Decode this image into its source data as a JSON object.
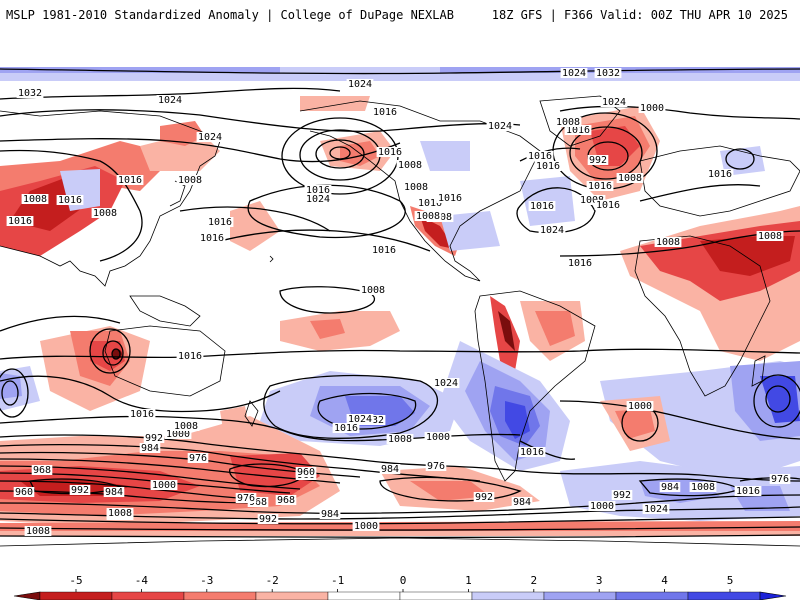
{
  "header": {
    "left": "MSLP 1981-2010 Standardized Anomaly | College of DuPage NEXLAB",
    "right": "18Z GFS | F366 Valid: 00Z THU APR 10 2025"
  },
  "colors": {
    "neg5": "#7a0d0d",
    "neg4": "#c41e1e",
    "neg3": "#e64646",
    "neg2": "#f47c6e",
    "neg1": "#fab3a4",
    "zero": "#ffffff",
    "pos1": "#c9ccf8",
    "pos2": "#9fa3f2",
    "pos3": "#7076ea",
    "pos4": "#4249e4",
    "pos5": "#1c22d8",
    "contour": "#000000",
    "coast": "#000000"
  },
  "colorbar": {
    "ticks": [
      "-5",
      "-4",
      "-3",
      "-2",
      "-1",
      "0",
      "1",
      "2",
      "3",
      "4",
      "5"
    ]
  },
  "pressure_labels": [
    "1032",
    "1024",
    "1032",
    "1024",
    "1016",
    "1016",
    "1024",
    "1016",
    "1024",
    "1008",
    "1008",
    "1016",
    "1016",
    "1008",
    "1016",
    "1008",
    "1008",
    "1016",
    "1024",
    "1008",
    "1016",
    "1016",
    "1008",
    "1016",
    "1016",
    "1024",
    "1016",
    "1024",
    "1008",
    "1016",
    "1016",
    "1000",
    "1008",
    "992",
    "1008",
    "1016",
    "1008",
    "1008",
    "1016",
    "1016",
    "1016",
    "1024",
    "1016",
    "1016",
    "1032",
    "1008",
    "1000",
    "1024",
    "1016",
    "1016",
    "1000",
    "1008",
    "992",
    "984",
    "968",
    "976",
    "960",
    "960",
    "968",
    "992",
    "984",
    "1000",
    "976",
    "968",
    "960",
    "984",
    "976",
    "1000",
    "1008",
    "1024",
    "1008",
    "992",
    "984",
    "1000",
    "1008",
    "992",
    "984",
    "992",
    "984",
    "1008",
    "1016",
    "976",
    "984",
    "1000",
    "1024",
    "1016",
    "1008"
  ]
}
